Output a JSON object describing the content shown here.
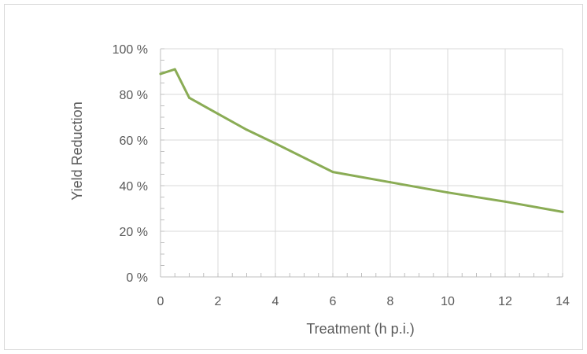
{
  "chart_data": {
    "type": "line",
    "title": "",
    "xlabel": "Treatment (h p.i.)",
    "ylabel": "Yield Reduction",
    "xlim": [
      0,
      14
    ],
    "ylim": [
      0,
      100
    ],
    "x_ticks": [
      0,
      2,
      4,
      6,
      8,
      10,
      12,
      14
    ],
    "x_tick_labels": [
      "0",
      "2",
      "4",
      "6",
      "8",
      "10",
      "12",
      "14"
    ],
    "y_ticks": [
      0,
      20,
      40,
      60,
      80,
      100
    ],
    "y_tick_labels": [
      "0 %",
      "20 %",
      "40 %",
      "60 %",
      "80 %",
      "100 %"
    ],
    "x_minor_step": 0.5,
    "grid": true,
    "legend": "none",
    "series": [
      {
        "color": "#8aac55",
        "points": [
          {
            "x": 0,
            "y": 89
          },
          {
            "x": 0.5,
            "y": 91
          },
          {
            "x": 1,
            "y": 78.5
          },
          {
            "x": 2,
            "y": 71.5
          },
          {
            "x": 3,
            "y": 64.5
          },
          {
            "x": 4,
            "y": 58.5
          },
          {
            "x": 6,
            "y": 46
          },
          {
            "x": 8,
            "y": 41.5
          },
          {
            "x": 10,
            "y": 37
          },
          {
            "x": 12,
            "y": 33
          },
          {
            "x": 14,
            "y": 28.5
          }
        ]
      }
    ],
    "colors": {
      "grid": "#d9d9d9",
      "axis": "#bfbfbf",
      "text": "#595959"
    }
  }
}
